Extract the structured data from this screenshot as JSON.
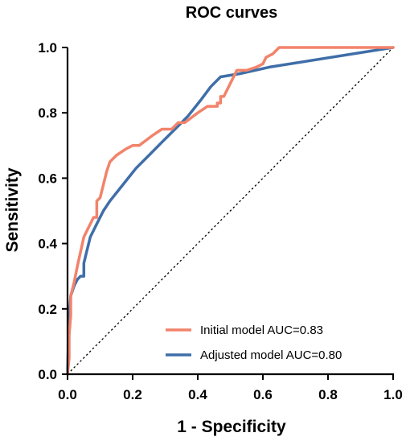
{
  "chart_data": {
    "type": "line",
    "title": "ROC curves",
    "xlabel": "1 - Specificity",
    "ylabel": "Sensitivity",
    "xlim": [
      0,
      1
    ],
    "ylim": [
      0,
      1
    ],
    "xticks": [
      "0.0",
      "0.2",
      "0.4",
      "0.6",
      "0.8",
      "1.0"
    ],
    "yticks": [
      "0.0",
      "0.2",
      "0.4",
      "0.6",
      "0.8",
      "1.0"
    ],
    "grid": false,
    "legend_position": "bottom-right",
    "reference_line": "diagonal dotted",
    "series": [
      {
        "name": "Initial model AUC=0.83",
        "color": "#f2836b",
        "x": [
          0,
          0.005,
          0.005,
          0.01,
          0.01,
          0.02,
          0.03,
          0.05,
          0.06,
          0.08,
          0.09,
          0.09,
          0.1,
          0.11,
          0.12,
          0.13,
          0.15,
          0.18,
          0.2,
          0.22,
          0.26,
          0.29,
          0.32,
          0.34,
          0.36,
          0.4,
          0.43,
          0.46,
          0.46,
          0.47,
          0.47,
          0.48,
          0.5,
          0.52,
          0.53,
          0.55,
          0.58,
          0.6,
          0.61,
          0.63,
          0.65,
          1.0
        ],
        "y": [
          0,
          0.05,
          0.12,
          0.18,
          0.24,
          0.28,
          0.33,
          0.42,
          0.44,
          0.48,
          0.48,
          0.53,
          0.54,
          0.58,
          0.62,
          0.65,
          0.67,
          0.69,
          0.7,
          0.7,
          0.73,
          0.75,
          0.75,
          0.77,
          0.77,
          0.8,
          0.82,
          0.82,
          0.83,
          0.83,
          0.85,
          0.85,
          0.89,
          0.93,
          0.93,
          0.93,
          0.94,
          0.95,
          0.97,
          0.98,
          1.0,
          1.0
        ]
      },
      {
        "name": "Adjusted model AUC=0.80",
        "color": "#3f6ea8",
        "x": [
          0,
          0.002,
          0.005,
          0.01,
          0.02,
          0.03,
          0.04,
          0.05,
          0.05,
          0.06,
          0.07,
          0.09,
          0.11,
          0.13,
          0.17,
          0.21,
          0.25,
          0.29,
          0.33,
          0.37,
          0.41,
          0.44,
          0.47,
          0.53,
          0.62,
          1.0
        ],
        "y": [
          0,
          0.08,
          0.18,
          0.24,
          0.27,
          0.29,
          0.3,
          0.3,
          0.34,
          0.38,
          0.42,
          0.46,
          0.5,
          0.53,
          0.58,
          0.63,
          0.67,
          0.71,
          0.75,
          0.79,
          0.84,
          0.88,
          0.91,
          0.92,
          0.94,
          1.0
        ]
      }
    ]
  }
}
